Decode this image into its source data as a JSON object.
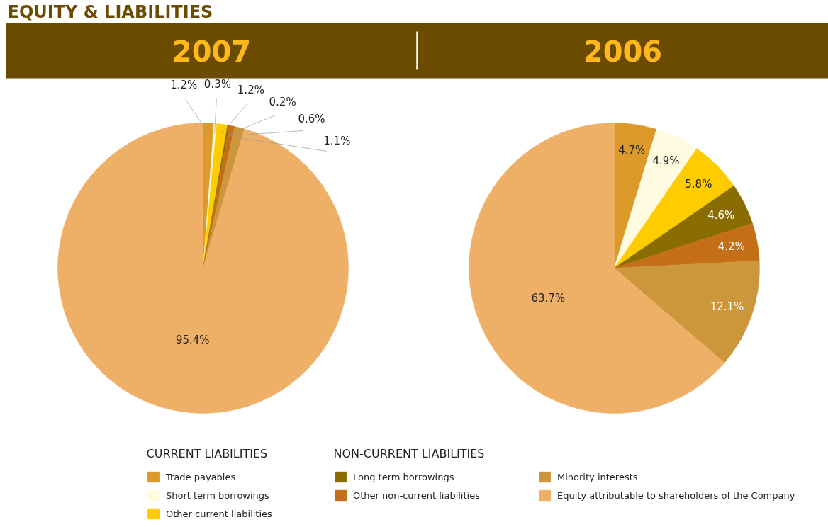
{
  "chart_data": {
    "type": "pie",
    "title": "EQUITY & LIABILITIES",
    "categories": [
      "Trade payables",
      "Short term borrowings",
      "Other current liabilities",
      "Long term borrowings",
      "Other non-current liabilities",
      "Minority interests",
      "Equity attributable to shareholders of the Company"
    ],
    "colors": [
      "#db9a2a",
      "#fffbe0",
      "#ffcc00",
      "#8a6d00",
      "#c46e18",
      "#cc973a",
      "#eeb066"
    ],
    "series": [
      {
        "name": "2007",
        "values": [
          1.2,
          0.3,
          1.2,
          0.2,
          0.6,
          1.1,
          95.4
        ],
        "value_labels": [
          "1.2%",
          "0.3%",
          "1.2%",
          "0.2%",
          "0.6%",
          "1.1%",
          "95.4%"
        ]
      },
      {
        "name": "2006",
        "values": [
          4.7,
          4.9,
          5.8,
          4.6,
          4.2,
          12.1,
          63.7
        ],
        "value_labels": [
          "4.7%",
          "4.9%",
          "5.8%",
          "4.6%",
          "4.2%",
          "12.1%",
          "63.7%"
        ]
      }
    ],
    "legend": "bottom",
    "annotations": [
      "CURRENT LIABILITIES",
      "NON-CURRENT LIABILITIES"
    ]
  }
}
